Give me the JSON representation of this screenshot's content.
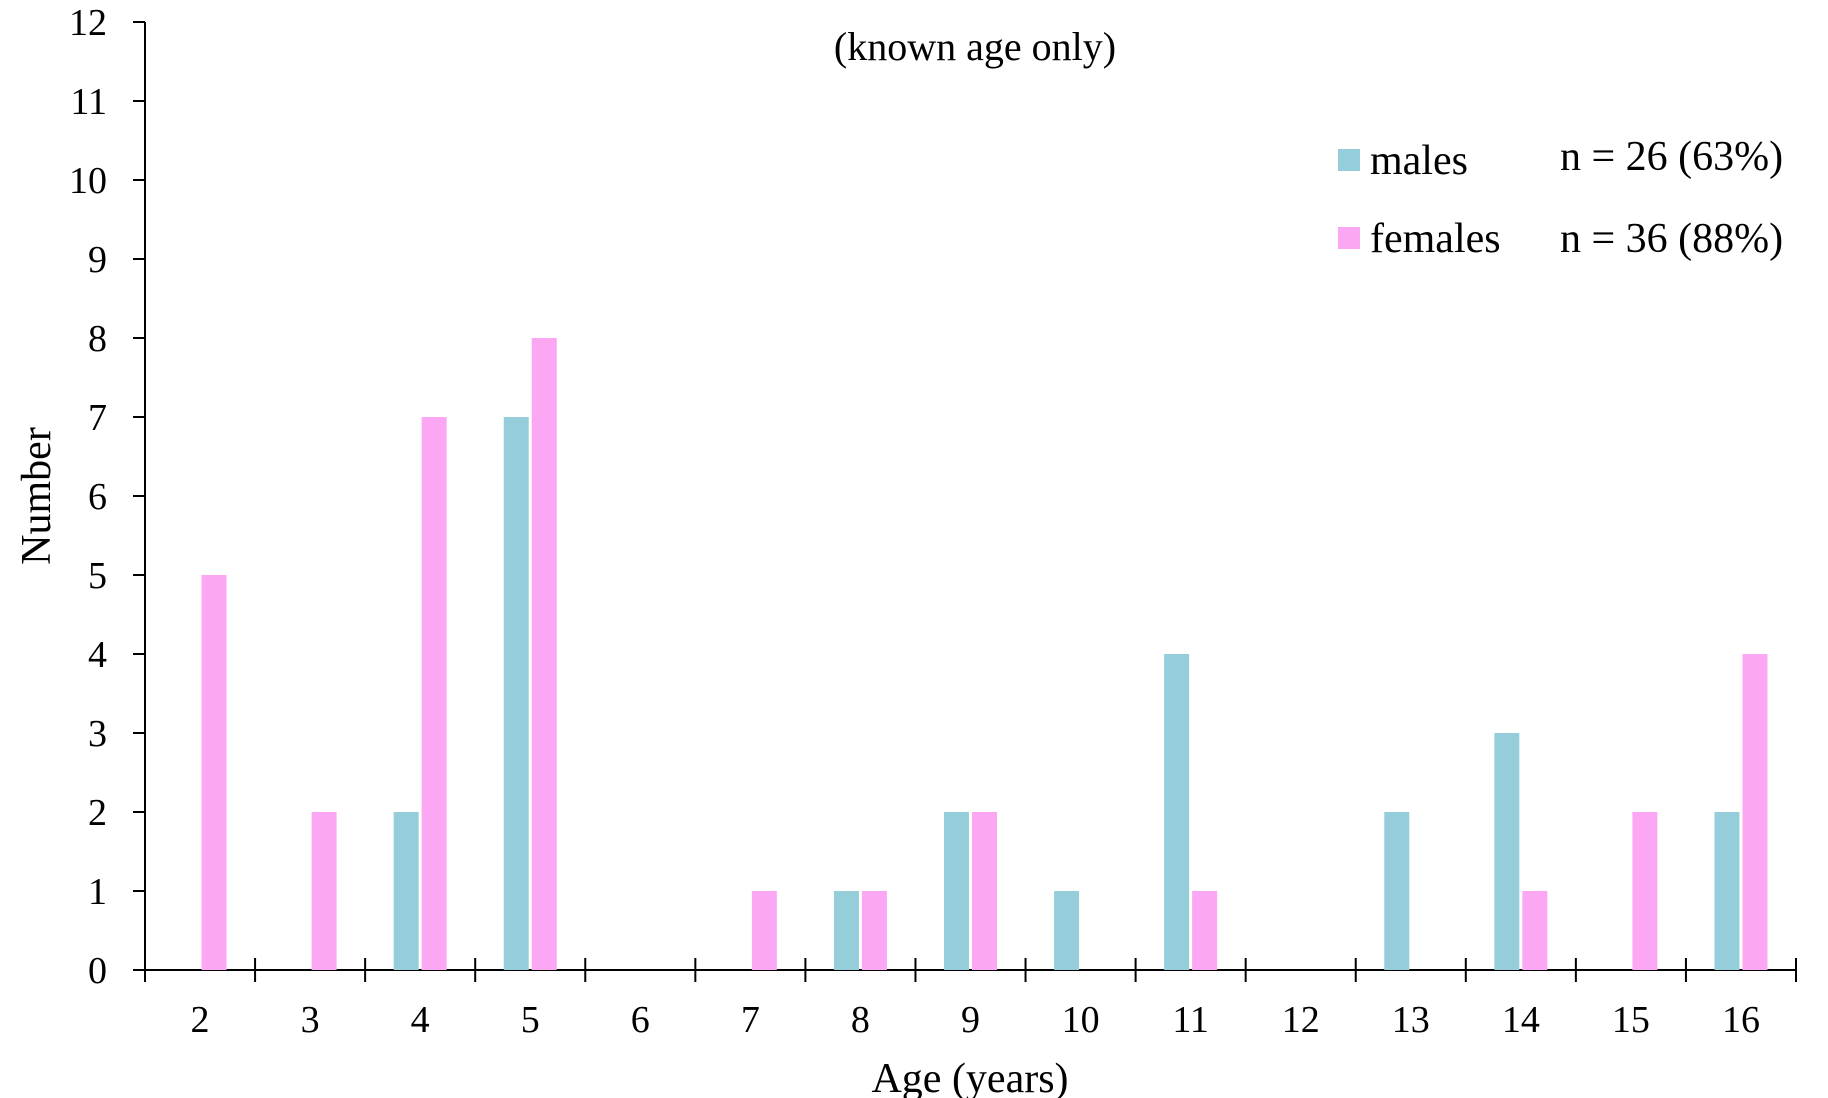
{
  "chart_data": {
    "type": "bar",
    "title": "(known age only)",
    "xlabel": "Age (years)",
    "ylabel": "Number",
    "categories": [
      "2",
      "3",
      "4",
      "5",
      "6",
      "7",
      "8",
      "9",
      "10",
      "11",
      "12",
      "13",
      "14",
      "15",
      "16"
    ],
    "series": [
      {
        "name": "males",
        "color": "#96cddb",
        "values": [
          0,
          0,
          2,
          7,
          0,
          0,
          1,
          2,
          1,
          4,
          0,
          2,
          3,
          0,
          2
        ]
      },
      {
        "name": "females",
        "color": "#fca7f4",
        "values": [
          5,
          2,
          7,
          8,
          0,
          1,
          1,
          2,
          0,
          1,
          0,
          0,
          1,
          2,
          4
        ]
      }
    ],
    "ylim": [
      0,
      12
    ],
    "yticks": [
      "0",
      "1",
      "2",
      "3",
      "4",
      "5",
      "6",
      "7",
      "8",
      "9",
      "10",
      "11",
      "12"
    ],
    "grid": false,
    "legend": {
      "placement": "top-right",
      "entries": [
        {
          "label": "males",
          "note": "n = 26 (63%)"
        },
        {
          "label": "females",
          "note": "n = 36 (88%)"
        }
      ]
    }
  }
}
